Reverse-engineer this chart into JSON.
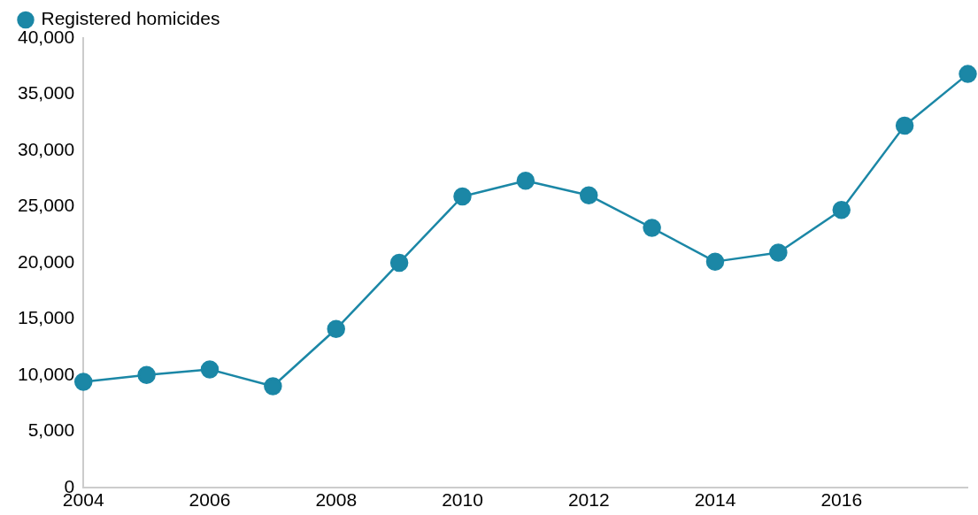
{
  "chart_data": {
    "type": "line",
    "x": [
      2004,
      2005,
      2006,
      2007,
      2008,
      2009,
      2010,
      2011,
      2012,
      2013,
      2014,
      2015,
      2016,
      2017,
      2018
    ],
    "series": [
      {
        "name": "Registered homicides",
        "color": "#1b87a6",
        "values": [
          9400,
          10000,
          10500,
          9000,
          14100,
          20000,
          25900,
          27300,
          26000,
          23100,
          20100,
          20900,
          24700,
          32200,
          36800
        ]
      }
    ],
    "xlim": [
      2004,
      2018
    ],
    "xticks": [
      2004,
      2006,
      2008,
      2010,
      2012,
      2014,
      2016
    ],
    "ylim": [
      0,
      40000
    ],
    "yticks": [
      0,
      {
        "value": 5000,
        "label": "5,000"
      },
      {
        "value": 10000,
        "label": "10,000"
      },
      {
        "value": 15000,
        "label": "15,000"
      },
      {
        "value": 20000,
        "label": "20,000"
      },
      {
        "value": 25000,
        "label": "25,000"
      },
      {
        "value": 30000,
        "label": "30,000"
      },
      {
        "value": 35000,
        "label": "35,000"
      },
      {
        "value": 40000,
        "label": "40,000"
      }
    ],
    "grid": false,
    "legend": "top left",
    "marker": "circle",
    "line_style": "solid"
  }
}
